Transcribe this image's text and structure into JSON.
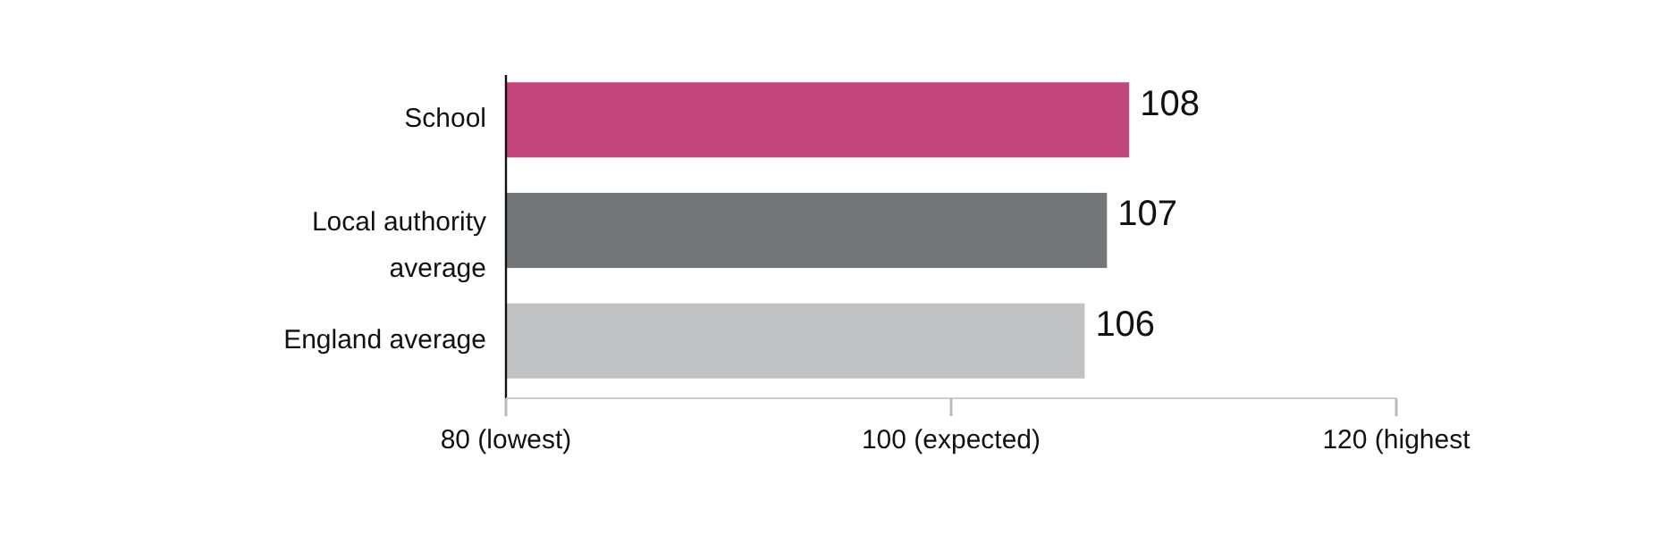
{
  "chart_data": {
    "type": "bar",
    "orientation": "horizontal",
    "categories": [
      "School",
      "Local authority average",
      "England average"
    ],
    "values": [
      108,
      107,
      106
    ],
    "colors": [
      "#c0467c",
      "#737678",
      "#c1c2c4"
    ],
    "xlim": [
      80,
      120
    ],
    "xticks": [
      {
        "value": 80,
        "label": "80 (lowest)"
      },
      {
        "value": 100,
        "label": "100 (expected)"
      },
      {
        "value": 120,
        "label": "120 (highest"
      }
    ],
    "data_labels": true
  }
}
